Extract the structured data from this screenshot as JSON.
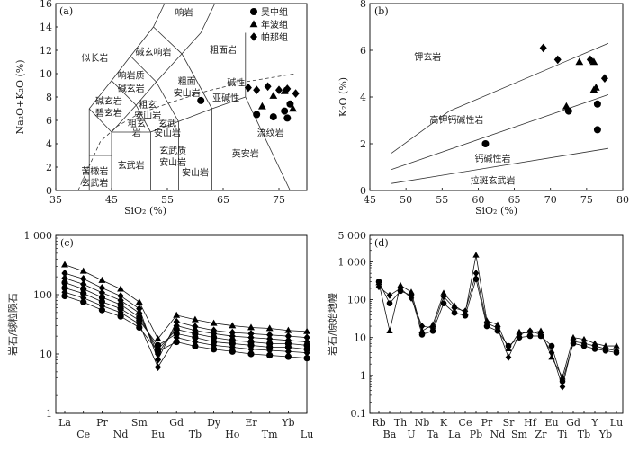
{
  "chart_data": [
    {
      "type": "scatter",
      "panel_label": "(a)",
      "xlabel": "SiO₂ (%)",
      "ylabel": "Na₂O+K₂O (%)",
      "xlim": [
        35,
        80
      ],
      "ylim": [
        0,
        16
      ],
      "xticks": [
        "35",
        "45",
        "55",
        "65",
        "75"
      ],
      "yticks": [
        "0",
        "2",
        "4",
        "6",
        "8",
        "10",
        "12",
        "14",
        "16"
      ],
      "legend": [
        "吴中组",
        "年波组",
        "帕那组"
      ],
      "fields": [
        {
          "label": "响岩",
          "x": 58,
          "y": 15.2
        },
        {
          "label": "似长岩",
          "x": 42,
          "y": 11.3
        },
        {
          "label": "碱玄响岩",
          "x": 52.5,
          "y": 11.8
        },
        {
          "label": "粗面岩",
          "x": 65,
          "y": 12
        },
        {
          "label": "响岩质",
          "x": 48.5,
          "y": 9.8
        },
        {
          "label": "碱玄岩",
          "x": 48.5,
          "y": 8.7
        },
        {
          "label": "粗面",
          "x": 58.5,
          "y": 9.3
        },
        {
          "label": "安山岩",
          "x": 58.5,
          "y": 8.3
        },
        {
          "label": "碱性",
          "x": 67.3,
          "y": 9.2
        },
        {
          "label": "亚碱性",
          "x": 65.5,
          "y": 7.9
        },
        {
          "label": "碱玄岩",
          "x": 44.5,
          "y": 7.6
        },
        {
          "label": "碧玄岩",
          "x": 44.5,
          "y": 6.6
        },
        {
          "label": "粗玄",
          "x": 51.5,
          "y": 7.3
        },
        {
          "label": "安山岩",
          "x": 51.5,
          "y": 6.4
        },
        {
          "label": "粗玄",
          "x": 49.5,
          "y": 5.7
        },
        {
          "label": "岩",
          "x": 49.5,
          "y": 4.9
        },
        {
          "label": "玄武",
          "x": 55,
          "y": 5.7
        },
        {
          "label": "安山岩",
          "x": 55,
          "y": 4.9
        },
        {
          "label": "流纹岩",
          "x": 73.5,
          "y": 4.9
        },
        {
          "label": "玄武质",
          "x": 56,
          "y": 3.4
        },
        {
          "label": "安山岩",
          "x": 56,
          "y": 2.4
        },
        {
          "label": "玄武岩",
          "x": 48.5,
          "y": 2.1
        },
        {
          "label": "安山岩",
          "x": 60,
          "y": 1.5
        },
        {
          "label": "英安岩",
          "x": 69,
          "y": 3.1
        },
        {
          "label": "苦橄岩",
          "x": 42,
          "y": 1.6
        },
        {
          "label": "玄武岩",
          "x": 42,
          "y": 0.6
        }
      ],
      "series": [
        {
          "name": "吴中组",
          "marker": "circle",
          "x": [
            61,
            71,
            74,
            76.5,
            77,
            76
          ],
          "y": [
            7.7,
            6.5,
            6.3,
            6.2,
            7.4,
            6.8
          ]
        },
        {
          "name": "年波组",
          "marker": "triangle",
          "x": [
            72,
            74,
            76,
            77.5
          ],
          "y": [
            7.2,
            8.1,
            8.5,
            7.0
          ]
        },
        {
          "name": "帕那组",
          "marker": "diamond",
          "x": [
            69.5,
            71,
            73,
            75,
            76.5,
            78
          ],
          "y": [
            8.8,
            8.6,
            8.9,
            8.6,
            8.7,
            8.3
          ]
        }
      ]
    },
    {
      "type": "scatter",
      "panel_label": "(b)",
      "xlabel": "SiO₂ (%)",
      "ylabel": "K₂O (%)",
      "xlim": [
        45,
        80
      ],
      "ylim": [
        0,
        8
      ],
      "xticks": [
        "45",
        "50",
        "55",
        "60",
        "65",
        "70",
        "75",
        "80"
      ],
      "yticks": [
        "0",
        "2",
        "4",
        "6",
        "8"
      ],
      "fields": [
        {
          "label": "钾玄岩",
          "x": 53,
          "y": 5.7
        },
        {
          "label": "高钾钙碱性岩",
          "x": 57,
          "y": 3.0
        },
        {
          "label": "钙碱性岩",
          "x": 62,
          "y": 1.35
        },
        {
          "label": "拉斑玄武岩",
          "x": 62,
          "y": 0.4
        }
      ],
      "series": [
        {
          "name": "吴中组",
          "marker": "circle",
          "x": [
            61,
            72.5,
            76.5,
            76.5
          ],
          "y": [
            2.0,
            3.4,
            3.7,
            2.6
          ]
        },
        {
          "name": "年波组",
          "marker": "triangle",
          "x": [
            72.2,
            74,
            76,
            76.3,
            76
          ],
          "y": [
            3.6,
            5.5,
            5.5,
            4.4,
            4.3
          ]
        },
        {
          "name": "帕那组",
          "marker": "diamond",
          "x": [
            69,
            71,
            75.5,
            77.5
          ],
          "y": [
            6.1,
            5.6,
            5.6,
            4.8
          ]
        }
      ]
    },
    {
      "type": "line",
      "panel_label": "(c)",
      "ylabel": "岩石/球粒陨石",
      "yscale": "log",
      "ylim": [
        1,
        1000
      ],
      "yticks": [
        "1",
        "10",
        "100",
        "1 000"
      ],
      "categories": [
        "La",
        "Ce",
        "Pr",
        "Nd",
        "Sm",
        "Eu",
        "Gd",
        "Tb",
        "Dy",
        "Ho",
        "Er",
        "Tm",
        "Yb",
        "Lu"
      ],
      "series": [
        {
          "name": "年波组",
          "marker": "triangle",
          "values": [
            320,
            250,
            175,
            125,
            75,
            18,
            45,
            38,
            33,
            30,
            28,
            27,
            25,
            24
          ]
        },
        {
          "name": "帕那组",
          "marker": "diamond",
          "values": [
            230,
            185,
            130,
            95,
            58,
            8,
            35,
            29,
            25,
            23,
            22,
            21,
            20,
            19
          ]
        },
        {
          "name": "帕那组",
          "marker": "diamond",
          "values": [
            190,
            150,
            108,
            80,
            49,
            10,
            30,
            25,
            22,
            20,
            19,
            18,
            17,
            16
          ]
        },
        {
          "name": "吴中组",
          "marker": "circle",
          "values": [
            160,
            125,
            90,
            68,
            42,
            12,
            26,
            22,
            19,
            17,
            16,
            15,
            15,
            14
          ]
        },
        {
          "name": "吴中组",
          "marker": "circle",
          "values": [
            130,
            105,
            76,
            58,
            37,
            14,
            22,
            19,
            16,
            15,
            14,
            13,
            13,
            12
          ]
        },
        {
          "name": "帕那组",
          "marker": "diamond",
          "values": [
            110,
            88,
            65,
            50,
            32,
            6,
            19,
            16,
            14,
            13,
            12,
            11.5,
            11,
            10.5
          ]
        },
        {
          "name": "吴中组",
          "marker": "circle",
          "values": [
            95,
            75,
            55,
            43,
            28,
            11,
            16,
            13.5,
            12,
            11,
            10,
            9.5,
            9,
            8.5
          ]
        }
      ]
    },
    {
      "type": "line",
      "panel_label": "(d)",
      "ylabel": "岩石/原始地幔",
      "yscale": "log",
      "ylim": [
        0.1,
        5000
      ],
      "yticks": [
        "0.1",
        "1",
        "10",
        "100",
        "1 000",
        "5 000"
      ],
      "categories": [
        "Rb",
        "Ba",
        "Th",
        "U",
        "Nb",
        "Ta",
        "K",
        "La",
        "Ce",
        "Pb",
        "Pr",
        "Nd",
        "Sr",
        "Sm",
        "Hf",
        "Zr",
        "Eu",
        "Ti",
        "Gd",
        "Tb",
        "Y",
        "Yb",
        "Lu"
      ],
      "series": [
        {
          "name": "年波组",
          "marker": "triangle",
          "values": [
            280,
            15,
            240,
            160,
            15,
            22,
            150,
            70,
            45,
            1500,
            28,
            22,
            5,
            14,
            13,
            15,
            3,
            0.9,
            10,
            9,
            7,
            6,
            6
          ]
        },
        {
          "name": "帕那组",
          "marker": "diamond",
          "values": [
            220,
            130,
            200,
            110,
            20,
            18,
            120,
            60,
            50,
            500,
            24,
            18,
            3,
            12,
            15,
            12,
            4,
            0.5,
            8,
            7,
            6,
            5,
            4.5
          ]
        },
        {
          "name": "吴中组",
          "marker": "circle",
          "values": [
            300,
            80,
            170,
            130,
            12,
            15,
            80,
            45,
            38,
            350,
            20,
            15,
            6,
            10,
            11,
            11,
            6,
            0.7,
            7,
            6,
            5,
            4.5,
            4
          ]
        }
      ]
    }
  ]
}
